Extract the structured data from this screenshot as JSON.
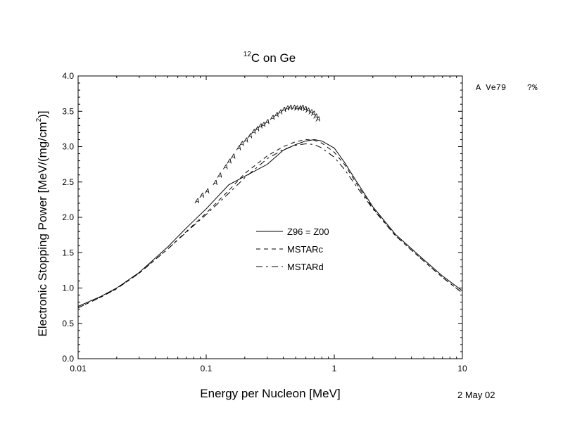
{
  "chart_data": {
    "type": "line",
    "title_sup": "12",
    "title_main": "C on Ge",
    "xlabel": "Energy per Nucleon [MeV]",
    "ylabel_main": "Electronic Stopping Power [MeV/(mg/cm",
    "ylabel_sup": "2",
    "ylabel_end": ")]",
    "x_scale": "log",
    "xlim": [
      0.01,
      10
    ],
    "ylim": [
      0.0,
      4.0
    ],
    "x_ticks": [
      0.01,
      0.1,
      1,
      10
    ],
    "x_tick_labels": [
      "0.01",
      "0.1",
      "1",
      "10"
    ],
    "y_ticks": [
      0.0,
      0.5,
      1.0,
      1.5,
      2.0,
      2.5,
      3.0,
      3.5,
      4.0
    ],
    "y_tick_labels": [
      "0.0",
      "0.5",
      "1.0",
      "1.5",
      "2.0",
      "2.5",
      "3.0",
      "3.5",
      "4.0"
    ],
    "grid": false,
    "legend_position": "center",
    "series": [
      {
        "name": "Z96 = Z00",
        "style": "solid",
        "x": [
          0.01,
          0.015,
          0.02,
          0.03,
          0.05,
          0.07,
          0.1,
          0.15,
          0.2,
          0.3,
          0.4,
          0.5,
          0.6,
          0.7,
          0.8,
          1.0,
          1.2,
          1.5,
          2,
          3,
          5,
          7,
          10
        ],
        "y": [
          0.74,
          0.88,
          1.0,
          1.22,
          1.58,
          1.85,
          2.12,
          2.46,
          2.58,
          2.75,
          2.95,
          3.03,
          3.08,
          3.1,
          3.08,
          2.98,
          2.78,
          2.5,
          2.15,
          1.76,
          1.4,
          1.17,
          0.96
        ]
      },
      {
        "name": "MSTARc",
        "style": "dashed",
        "x": [
          0.01,
          0.015,
          0.02,
          0.03,
          0.05,
          0.07,
          0.1,
          0.15,
          0.2,
          0.3,
          0.4,
          0.5,
          0.6,
          0.7,
          0.8,
          1.0,
          1.2,
          1.5,
          2,
          3,
          5,
          7,
          10
        ],
        "y": [
          0.72,
          0.87,
          0.99,
          1.21,
          1.55,
          1.8,
          2.06,
          2.38,
          2.62,
          2.87,
          3.0,
          3.07,
          3.1,
          3.09,
          3.05,
          2.92,
          2.75,
          2.47,
          2.13,
          1.74,
          1.38,
          1.15,
          0.93
        ]
      },
      {
        "name": "MSTARd",
        "style": "dashdot",
        "x": [
          0.01,
          0.015,
          0.02,
          0.03,
          0.05,
          0.07,
          0.1,
          0.15,
          0.2,
          0.3,
          0.4,
          0.5,
          0.6,
          0.7,
          0.8,
          1.0,
          1.2,
          1.5,
          2,
          3,
          5,
          7,
          10
        ],
        "y": [
          0.72,
          0.87,
          0.99,
          1.21,
          1.55,
          1.79,
          2.04,
          2.34,
          2.56,
          2.83,
          2.96,
          3.02,
          3.04,
          3.03,
          2.98,
          2.85,
          2.68,
          2.43,
          2.12,
          1.74,
          1.38,
          1.15,
          0.93
        ]
      },
      {
        "name": "A Ve79",
        "style": "marker",
        "marker": "A",
        "x": [
          0.085,
          0.093,
          0.102,
          0.118,
          0.128,
          0.142,
          0.152,
          0.163,
          0.18,
          0.19,
          0.205,
          0.22,
          0.235,
          0.25,
          0.265,
          0.28,
          0.3,
          0.33,
          0.355,
          0.38,
          0.405,
          0.43,
          0.455,
          0.485,
          0.51,
          0.54,
          0.565,
          0.595,
          0.625,
          0.66,
          0.69,
          0.72,
          0.75
        ],
        "y": [
          2.24,
          2.32,
          2.38,
          2.5,
          2.6,
          2.72,
          2.8,
          2.87,
          2.99,
          3.05,
          3.1,
          3.16,
          3.22,
          3.26,
          3.3,
          3.32,
          3.36,
          3.42,
          3.46,
          3.5,
          3.53,
          3.55,
          3.56,
          3.56,
          3.55,
          3.55,
          3.56,
          3.54,
          3.52,
          3.5,
          3.48,
          3.44,
          3.4
        ]
      }
    ],
    "legend_entries": [
      "Z96 = Z00",
      "MSTARc",
      "MSTARd"
    ],
    "side_legend_label": "A Ve79",
    "side_legend_value": "?%",
    "date": "2 May 02"
  }
}
